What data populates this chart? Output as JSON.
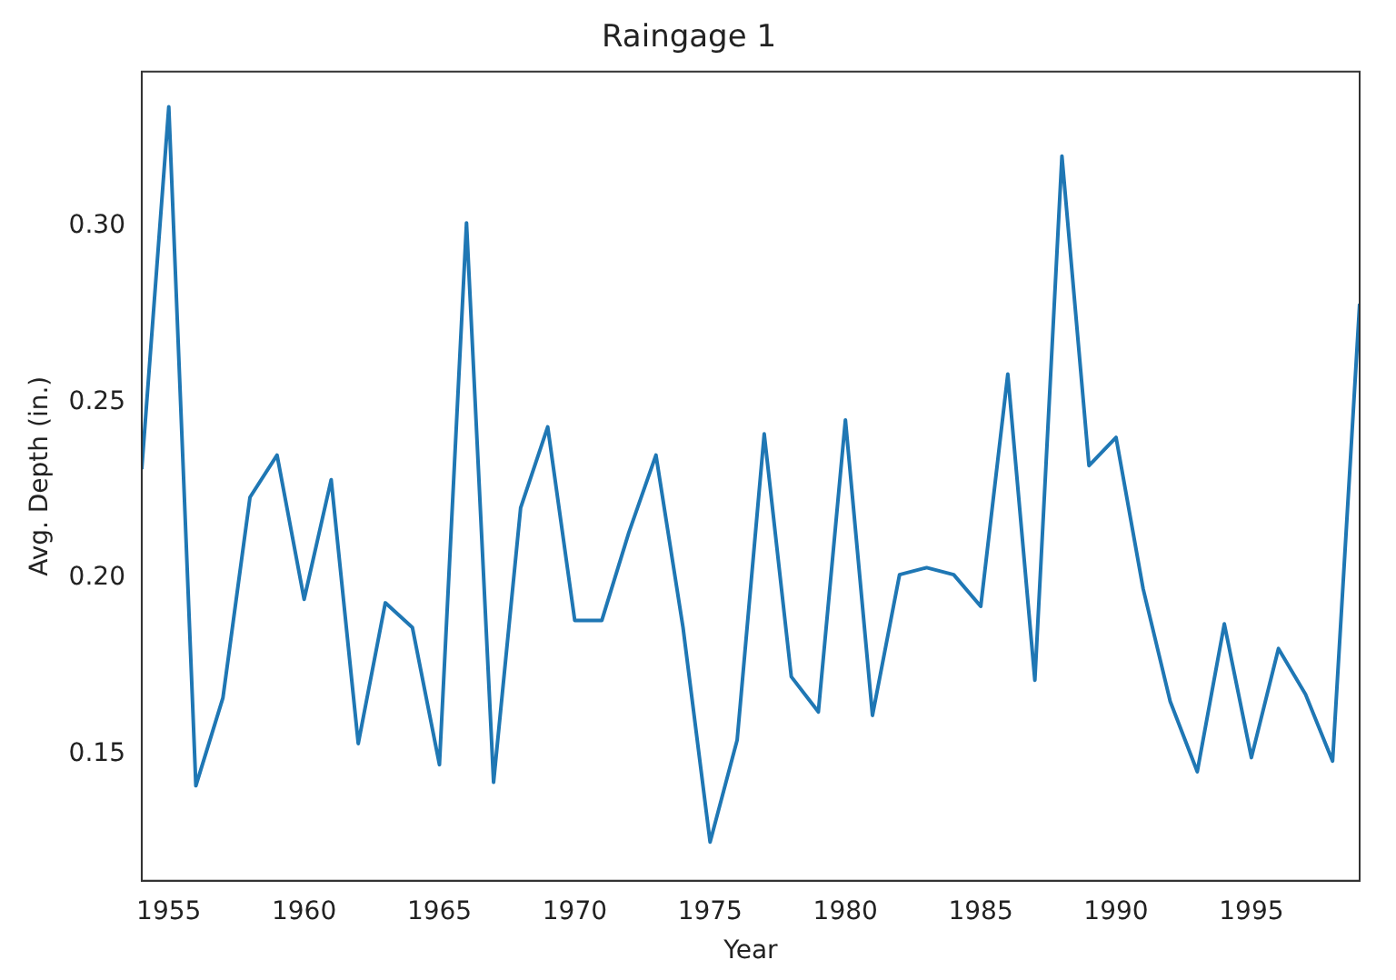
{
  "chart_data": {
    "type": "line",
    "title": "Raingage 1",
    "xlabel": "Year",
    "ylabel": "Avg. Depth (in.)",
    "x": [
      1954,
      1955,
      1956,
      1957,
      1958,
      1959,
      1960,
      1961,
      1962,
      1963,
      1964,
      1965,
      1966,
      1967,
      1968,
      1969,
      1970,
      1971,
      1972,
      1973,
      1974,
      1975,
      1976,
      1977,
      1978,
      1979,
      1980,
      1981,
      1982,
      1983,
      1984,
      1985,
      1986,
      1987,
      1988,
      1989,
      1990,
      1991,
      1992,
      1993,
      1994,
      1995,
      1996,
      1997,
      1998,
      1999
    ],
    "series": [
      {
        "color": "#1f77b4",
        "values": [
          0.231,
          0.334,
          0.141,
          0.166,
          0.223,
          0.235,
          0.194,
          0.228,
          0.153,
          0.193,
          0.186,
          0.147,
          0.301,
          0.142,
          0.22,
          0.243,
          0.188,
          0.188,
          0.213,
          0.235,
          0.186,
          0.125,
          0.154,
          0.241,
          0.172,
          0.162,
          0.245,
          0.161,
          0.201,
          0.203,
          0.201,
          0.192,
          0.258,
          0.171,
          0.32,
          0.232,
          0.24,
          0.197,
          0.165,
          0.145,
          0.187,
          0.149,
          0.18,
          0.167,
          0.148,
          0.278
        ]
      }
    ],
    "xlim": [
      1954,
      1999
    ],
    "ylim": [
      0.114,
      0.344
    ],
    "xticks": [
      1955,
      1960,
      1965,
      1970,
      1975,
      1980,
      1985,
      1990,
      1995
    ],
    "yticks": [
      {
        "value": 0.15,
        "label": "0.15"
      },
      {
        "value": 0.2,
        "label": "0.20"
      },
      {
        "value": 0.25,
        "label": "0.25"
      },
      {
        "value": 0.3,
        "label": "0.30"
      }
    ],
    "grid": false,
    "legend": false
  }
}
